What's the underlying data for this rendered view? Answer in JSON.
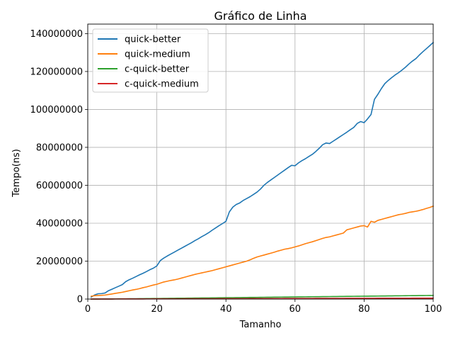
{
  "chart_data": {
    "type": "line",
    "title": "Gráfico de Linha",
    "xlabel": "Tamanho",
    "ylabel": "Tempo(ns)",
    "xlim": [
      0,
      100
    ],
    "ylim": [
      0,
      145000000
    ],
    "x_ticks": [
      0,
      20,
      40,
      60,
      80,
      100
    ],
    "x_tick_labels": [
      "0",
      "20",
      "40",
      "60",
      "80",
      "100"
    ],
    "y_ticks": [
      0,
      20000000,
      40000000,
      60000000,
      80000000,
      100000000,
      120000000,
      140000000
    ],
    "y_tick_labels": [
      "0",
      "20000000",
      "40000000",
      "60000000",
      "80000000",
      "100000000",
      "120000000",
      "140000000"
    ],
    "grid": true,
    "legend_position": "top-left",
    "x": [
      1,
      2,
      3,
      4,
      5,
      6,
      7,
      8,
      9,
      10,
      11,
      12,
      13,
      14,
      15,
      16,
      17,
      18,
      19,
      20,
      21,
      22,
      23,
      24,
      25,
      26,
      27,
      28,
      29,
      30,
      31,
      32,
      33,
      34,
      35,
      36,
      37,
      38,
      39,
      40,
      41,
      42,
      43,
      44,
      45,
      46,
      47,
      48,
      49,
      50,
      51,
      52,
      53,
      54,
      55,
      56,
      57,
      58,
      59,
      60,
      61,
      62,
      63,
      64,
      65,
      66,
      67,
      68,
      69,
      70,
      71,
      72,
      73,
      74,
      75,
      76,
      77,
      78,
      79,
      80,
      81,
      82,
      83,
      84,
      85,
      86,
      87,
      88,
      89,
      90,
      91,
      92,
      93,
      94,
      95,
      96,
      97,
      98,
      99,
      100
    ],
    "series": [
      {
        "name": "quick-better",
        "color": "#1f77b4",
        "values": [
          1000000,
          2200000,
          2800000,
          2900000,
          3200000,
          4400000,
          5200000,
          6000000,
          6800000,
          7600000,
          9200000,
          10200000,
          11000000,
          11900000,
          12800000,
          13600000,
          14500000,
          15500000,
          16300000,
          17500000,
          20300000,
          21600000,
          22700000,
          23700000,
          24700000,
          25700000,
          26700000,
          27700000,
          28700000,
          29700000,
          30800000,
          31800000,
          32900000,
          33900000,
          35000000,
          36300000,
          37500000,
          38700000,
          39800000,
          41000000,
          46000000,
          48500000,
          49900000,
          50700000,
          52000000,
          53000000,
          54000000,
          55200000,
          56400000,
          58000000,
          60000000,
          61500000,
          62800000,
          64100000,
          65400000,
          66700000,
          68000000,
          69300000,
          70500000,
          70300000,
          71800000,
          73000000,
          74000000,
          75200000,
          76300000,
          77800000,
          79500000,
          81400000,
          82300000,
          82000000,
          83200000,
          84400000,
          85600000,
          86800000,
          88000000,
          89300000,
          90500000,
          92600000,
          93600000,
          93000000,
          95000000,
          97300000,
          105300000,
          108000000,
          111000000,
          113600000,
          115300000,
          116800000,
          118200000,
          119400000,
          120800000,
          122300000,
          124000000,
          125500000,
          126800000,
          128700000,
          130400000,
          132000000,
          133600000,
          135300000
        ],
        "note": ""
      },
      {
        "name": "quick-medium",
        "color": "#ff7f0e",
        "values": [
          1500000,
          1800000,
          1900000,
          2000000,
          2100000,
          2400000,
          2700000,
          3000000,
          3300000,
          3600000,
          4000000,
          4400000,
          4800000,
          5100000,
          5500000,
          6000000,
          6400000,
          6900000,
          7400000,
          7800000,
          8400000,
          9000000,
          9400000,
          9800000,
          10100000,
          10500000,
          11000000,
          11500000,
          12000000,
          12500000,
          13000000,
          13400000,
          13800000,
          14200000,
          14600000,
          15000000,
          15500000,
          16000000,
          16500000,
          17000000,
          17500000,
          18000000,
          18500000,
          19000000,
          19500000,
          20000000,
          20700000,
          21500000,
          22200000,
          22700000,
          23200000,
          23700000,
          24200000,
          24700000,
          25300000,
          25800000,
          26300000,
          26600000,
          27000000,
          27500000,
          28000000,
          28600000,
          29200000,
          29700000,
          30200000,
          30800000,
          31400000,
          32000000,
          32500000,
          32800000,
          33300000,
          33800000,
          34300000,
          34800000,
          36500000,
          37000000,
          37500000,
          38000000,
          38500000,
          38700000,
          38000000,
          41000000,
          40500000,
          41500000,
          42000000,
          42500000,
          43000000,
          43500000,
          44000000,
          44500000,
          44800000,
          45200000,
          45700000,
          46000000,
          46300000,
          46700000,
          47200000,
          47800000,
          48300000,
          49000000
        ]
      },
      {
        "name": "c-quick-better",
        "color": "#2ca02c",
        "values": [
          20000,
          30000,
          40000,
          50000,
          60000,
          70000,
          80000,
          90000,
          100000,
          110000,
          130000,
          150000,
          170000,
          190000,
          210000,
          230000,
          250000,
          270000,
          290000,
          310000,
          330000,
          350000,
          370000,
          390000,
          410000,
          430000,
          450000,
          470000,
          490000,
          510000,
          530000,
          550000,
          570000,
          590000,
          610000,
          630000,
          650000,
          670000,
          690000,
          710000,
          730000,
          750000,
          770000,
          790000,
          810000,
          830000,
          850000,
          870000,
          890000,
          910000,
          930000,
          950000,
          970000,
          990000,
          1010000,
          1030000,
          1050000,
          1070000,
          1090000,
          1110000,
          1130000,
          1150000,
          1170000,
          1190000,
          1210000,
          1230000,
          1250000,
          1270000,
          1290000,
          1310000,
          1330000,
          1350000,
          1370000,
          1390000,
          1410000,
          1430000,
          1450000,
          1470000,
          1490000,
          1510000,
          1530000,
          1550000,
          1570000,
          1590000,
          1610000,
          1630000,
          1650000,
          1670000,
          1690000,
          1710000,
          1730000,
          1750000,
          1770000,
          1790000,
          1810000,
          1830000,
          1850000,
          1870000,
          1890000,
          1910000
        ]
      },
      {
        "name": "c-quick-medium",
        "color": "#d62728",
        "values": [
          10000,
          15000,
          20000,
          25000,
          30000,
          35000,
          40000,
          45000,
          50000,
          55000,
          60000,
          65000,
          70000,
          75000,
          80000,
          85000,
          90000,
          95000,
          100000,
          105000,
          110000,
          115000,
          120000,
          125000,
          130000,
          135000,
          140000,
          145000,
          150000,
          155000,
          160000,
          165000,
          170000,
          175000,
          180000,
          185000,
          190000,
          195000,
          200000,
          205000,
          210000,
          215000,
          220000,
          225000,
          230000,
          235000,
          240000,
          245000,
          250000,
          255000,
          260000,
          265000,
          270000,
          275000,
          280000,
          285000,
          290000,
          295000,
          300000,
          305000,
          310000,
          315000,
          320000,
          325000,
          330000,
          335000,
          340000,
          345000,
          350000,
          355000,
          360000,
          365000,
          370000,
          375000,
          380000,
          385000,
          390000,
          395000,
          400000,
          405000,
          410000,
          415000,
          420000,
          425000,
          430000,
          435000,
          440000,
          445000,
          450000,
          455000,
          460000,
          465000,
          470000,
          475000,
          480000,
          485000,
          490000,
          495000,
          500000,
          505000
        ]
      }
    ]
  }
}
